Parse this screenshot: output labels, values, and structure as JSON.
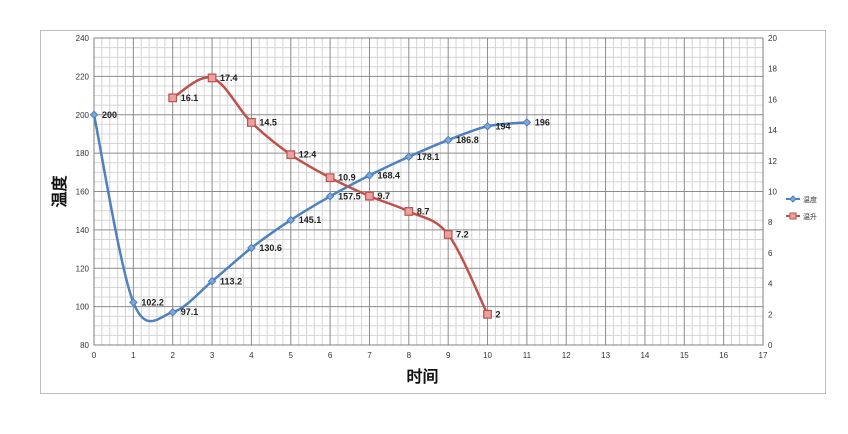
{
  "chart_data": {
    "type": "line",
    "xlabel": "时间",
    "ylabel": "温度",
    "x_ticks": [
      0,
      1,
      2,
      3,
      4,
      5,
      6,
      7,
      8,
      9,
      10,
      11,
      12,
      13,
      14,
      15,
      16,
      17
    ],
    "xlim": [
      0,
      17
    ],
    "ylim": [
      80,
      240
    ],
    "y_ticks": [
      80,
      100,
      120,
      140,
      160,
      180,
      200,
      220,
      240
    ],
    "y2lim": [
      0,
      20
    ],
    "y2_ticks": [
      0,
      2,
      4,
      6,
      8,
      10,
      12,
      14,
      16,
      18,
      20
    ],
    "grid": true,
    "legend_position": "right",
    "series": [
      {
        "name": "温度",
        "axis": "left",
        "color": "#4f81bd",
        "marker": "diamond",
        "x": [
          0,
          1,
          2,
          3,
          4,
          5,
          6,
          7,
          8,
          9,
          10,
          11
        ],
        "values": [
          200,
          102.2,
          97.1,
          113.2,
          130.6,
          145.1,
          157.5,
          168.4,
          178.1,
          186.8,
          194,
          196
        ],
        "labels": [
          "200",
          "102.2",
          "97.1",
          "113.2",
          "130.6",
          "145.1",
          "157.5",
          "168.4",
          "178.1",
          "186.8",
          "194",
          "196"
        ]
      },
      {
        "name": "温升",
        "axis": "right",
        "color": "#c0504d",
        "marker": "square",
        "x": [
          2,
          3,
          4,
          5,
          6,
          7,
          8,
          9,
          10
        ],
        "values": [
          16.1,
          17.4,
          14.5,
          12.4,
          10.9,
          9.7,
          8.7,
          7.2,
          2
        ],
        "labels": [
          "16.1",
          "17.4",
          "14.5",
          "12.4",
          "10.9",
          "9.7",
          "8.7",
          "7.2",
          "2"
        ]
      }
    ]
  }
}
